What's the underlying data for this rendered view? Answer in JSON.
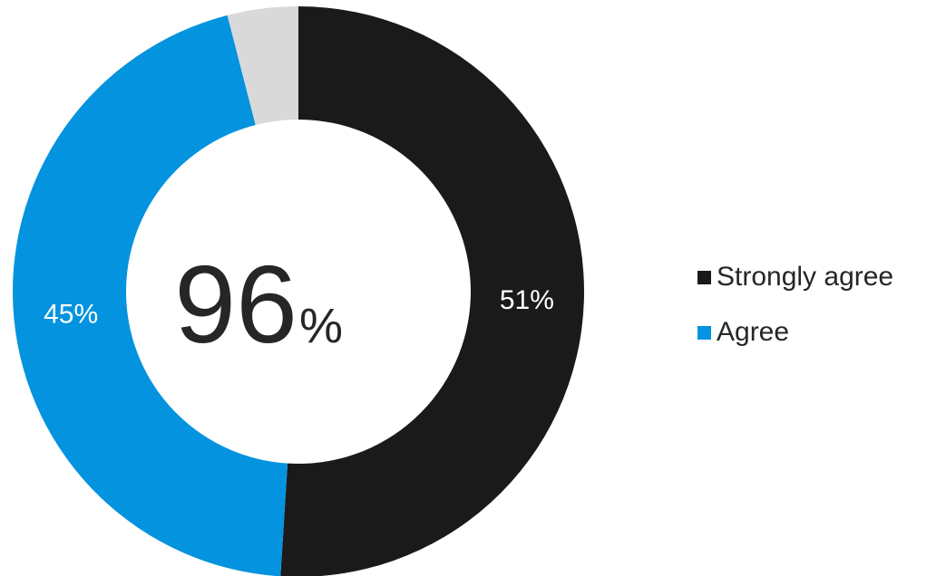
{
  "chart_data": {
    "type": "pie",
    "style": "donut",
    "center_label": {
      "value": "96",
      "unit": "%"
    },
    "slices": [
      {
        "name": "Strongly agree",
        "value": 51,
        "label": "51%",
        "color": "#1a1a1a",
        "in_legend": true
      },
      {
        "name": "Agree",
        "value": 45,
        "label": "45%",
        "color": "#0493de",
        "in_legend": true
      },
      {
        "name": "",
        "value": 4,
        "label": "",
        "color": "#d9d9d9",
        "in_legend": false
      }
    ],
    "legend": {
      "placement": "right",
      "items": [
        {
          "label": "Strongly agree",
          "color": "#1a1a1a"
        },
        {
          "label": "Agree",
          "color": "#0493de"
        }
      ]
    }
  }
}
